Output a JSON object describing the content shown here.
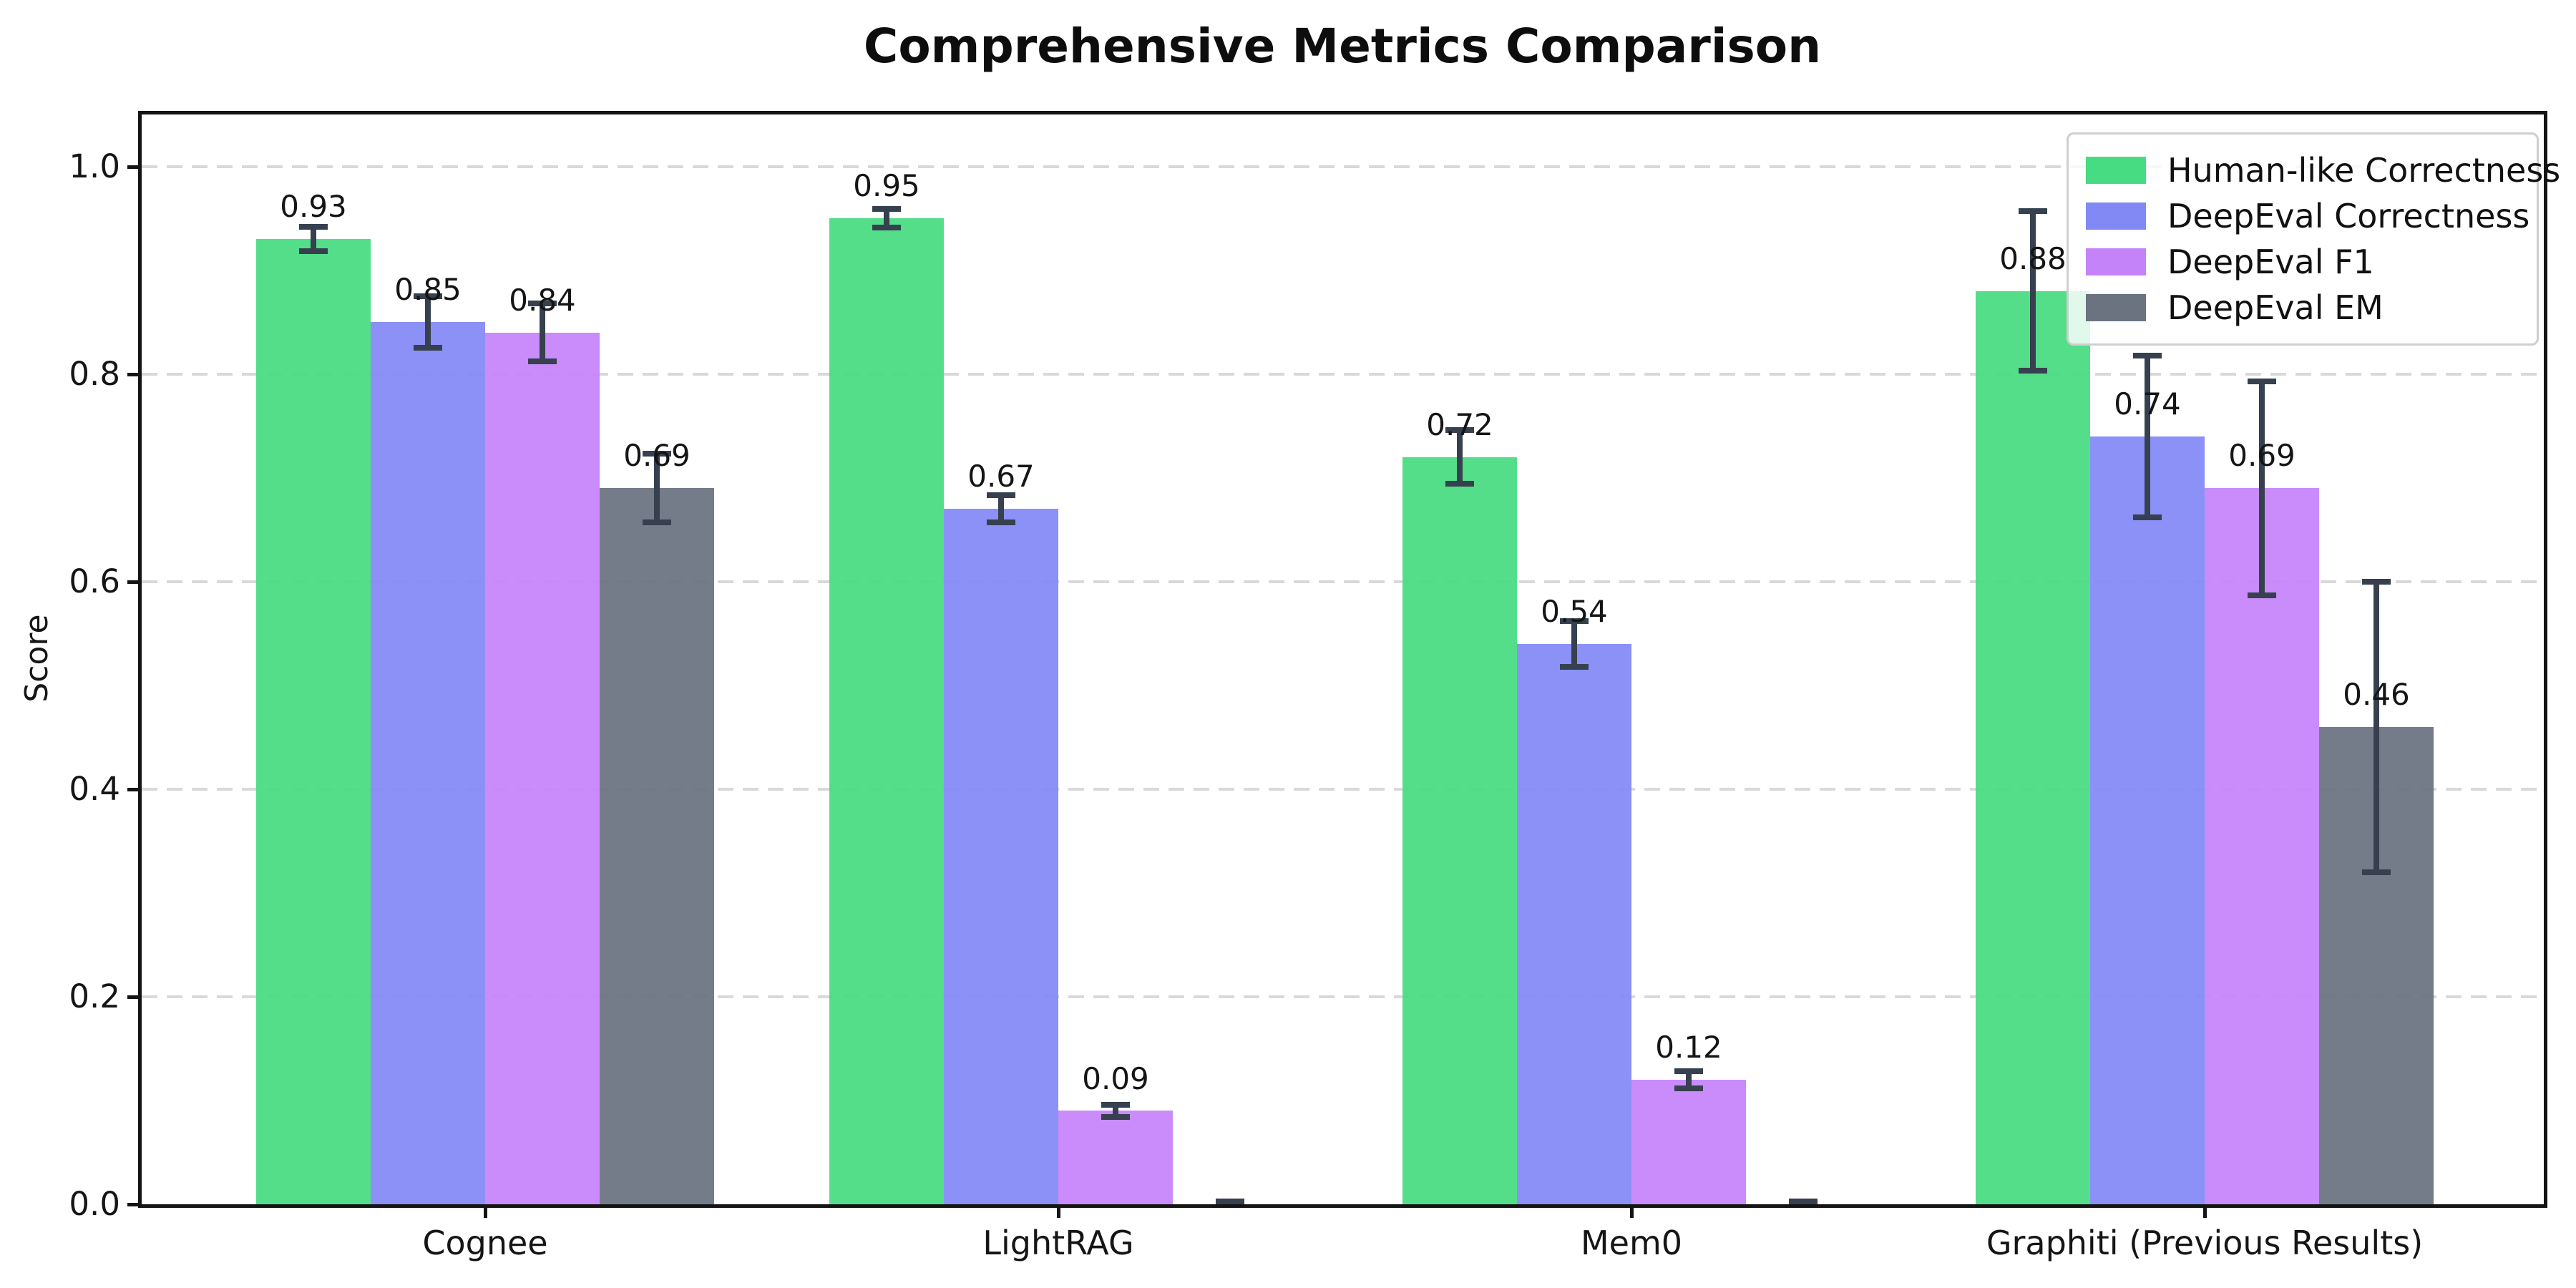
{
  "chart_data": {
    "type": "bar",
    "title": "Comprehensive Metrics Comparison",
    "xlabel": "",
    "ylabel": "Score",
    "categories": [
      "Cognee",
      "LightRAG",
      "Mem0",
      "Graphiti (Previous Results)"
    ],
    "series": [
      {
        "name": "Human-like Correctness",
        "color": "#47dc81",
        "values": [
          0.93,
          0.95,
          0.72,
          0.88
        ],
        "errors": [
          0.012,
          0.009,
          0.026,
          0.077
        ],
        "value_labels": [
          "0.93",
          "0.95",
          "0.72",
          "0.88"
        ]
      },
      {
        "name": "DeepEval Correctness",
        "color": "#8289f5",
        "values": [
          0.85,
          0.67,
          0.54,
          0.74
        ],
        "errors": [
          0.025,
          0.013,
          0.022,
          0.078
        ],
        "value_labels": [
          "0.85",
          "0.67",
          "0.54",
          "0.74"
        ]
      },
      {
        "name": "DeepEval F1",
        "color": "#c583fa",
        "values": [
          0.84,
          0.09,
          0.12,
          0.69
        ],
        "errors": [
          0.028,
          0.006,
          0.008,
          0.103
        ],
        "value_labels": [
          "0.84",
          "0.09",
          "0.12",
          "0.69"
        ]
      },
      {
        "name": "DeepEval EM",
        "color": "#6b7280",
        "values": [
          0.69,
          0.0,
          0.0,
          0.46
        ],
        "errors": [
          0.033,
          0.003,
          0.003,
          0.14
        ],
        "value_labels": [
          "0.69",
          null,
          null,
          "0.46"
        ]
      }
    ],
    "ylim": [
      0,
      1.05
    ],
    "yticks": [
      0.0,
      0.2,
      0.4,
      0.6,
      0.8,
      1.0
    ],
    "ytick_labels": [
      "0.0",
      "0.2",
      "0.4",
      "0.6",
      "0.8",
      "1.0"
    ],
    "grid": true,
    "grid_axis": "y",
    "grid_style": "dashed",
    "grid_color": "#d9d9d9",
    "legend_position": "upper right",
    "bar_width": 0.2,
    "error_bar_color": "#36404e",
    "axis_color": "#141414",
    "background_color": "#ffffff"
  }
}
